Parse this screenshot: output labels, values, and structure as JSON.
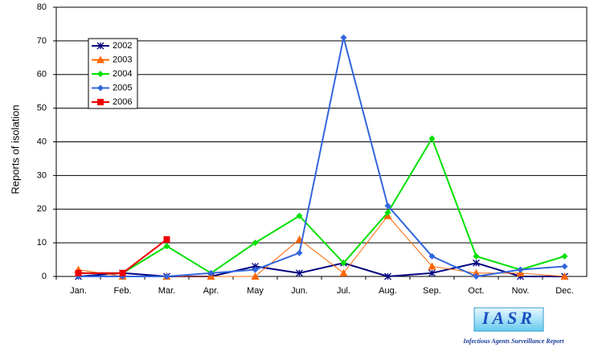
{
  "chart_data": {
    "type": "line",
    "y_label": "Reports of isolation",
    "categories": [
      "Jan.",
      "Feb.",
      "Mar.",
      "Apr.",
      "May",
      "Jun.",
      "Jul.",
      "Aug.",
      "Sep.",
      "Oct.",
      "Nov.",
      "Dec."
    ],
    "series": [
      {
        "name": "2002",
        "color": "#000080",
        "marker": "star",
        "values": [
          0,
          1,
          0,
          0,
          3,
          1,
          4,
          0,
          1,
          4,
          0,
          0
        ]
      },
      {
        "name": "2003",
        "color": "#ff6600",
        "marker": "triangle",
        "values": [
          2,
          0,
          0,
          0,
          0,
          11,
          1,
          18,
          3,
          1,
          1,
          0
        ]
      },
      {
        "name": "2004",
        "color": "#00e000",
        "marker": "diamond",
        "values": [
          1,
          1,
          9,
          1,
          10,
          18,
          4,
          19,
          41,
          6,
          2,
          6
        ]
      },
      {
        "name": "2005",
        "color": "#3366dd",
        "marker": "diamond",
        "values": [
          0,
          0,
          0,
          1,
          2,
          7,
          71,
          21,
          6,
          0,
          2,
          3
        ]
      },
      {
        "name": "2006",
        "color": "#ee0000",
        "marker": "square",
        "values": [
          1,
          1,
          11,
          null,
          null,
          null,
          null,
          null,
          null,
          null,
          null,
          null
        ]
      }
    ],
    "ylim": [
      0,
      80
    ],
    "yticks": [
      0,
      10,
      20,
      30,
      40,
      50,
      60,
      70,
      80
    ],
    "grid": true,
    "legend": "upper left",
    "logo": {
      "title": "IASR",
      "subtitle": "Infectious Agents Surveillance Report"
    }
  }
}
